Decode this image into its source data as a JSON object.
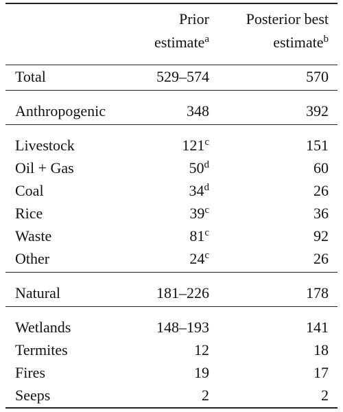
{
  "table": {
    "header": [
      {
        "lines": [
          "Prior",
          "estimate"
        ],
        "sup": "a"
      },
      {
        "lines": [
          "Posterior best",
          "estimate"
        ],
        "sup": "b"
      }
    ],
    "groups": [
      [
        {
          "label": "Total",
          "prior": "529–574",
          "posterior": 570
        }
      ],
      [
        {
          "label": "Anthropogenic",
          "prior": 348,
          "posterior": 392
        }
      ],
      [
        {
          "label": "Livestock",
          "prior": 121,
          "prior_note": "c",
          "posterior": 151
        },
        {
          "label": "Oil + Gas",
          "prior": 50,
          "prior_note": "d",
          "posterior": 60
        },
        {
          "label": "Coal",
          "prior": 34,
          "prior_note": "d",
          "posterior": 26
        },
        {
          "label": "Rice",
          "prior": 39,
          "prior_note": "c",
          "posterior": 36
        },
        {
          "label": "Waste",
          "prior": 81,
          "prior_note": "c",
          "posterior": 92
        },
        {
          "label": "Other",
          "prior": 24,
          "prior_note": "c",
          "posterior": 26
        }
      ],
      [
        {
          "label": "Natural",
          "prior": "181–226",
          "posterior": 178
        }
      ],
      [
        {
          "label": "Wetlands",
          "prior": "148–193",
          "posterior": 141
        },
        {
          "label": "Termites",
          "prior": 12,
          "posterior": 18
        },
        {
          "label": "Fires",
          "prior": 19,
          "posterior": 17
        },
        {
          "label": "Seeps",
          "prior": 2,
          "posterior": 2
        }
      ]
    ]
  }
}
